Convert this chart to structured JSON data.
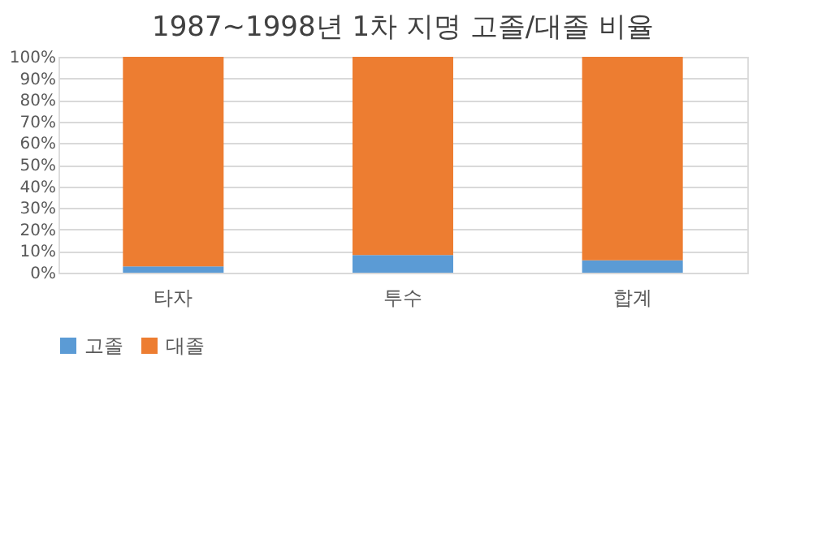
{
  "chart_data": {
    "type": "bar",
    "title": "1987~1998년 1차 지명 고졸/대졸 비율",
    "stacked": true,
    "categories": [
      "타자",
      "투수",
      "합계"
    ],
    "series": [
      {
        "name": "고졸",
        "color": "#5b9bd5",
        "values": [
          2.9,
          8.2,
          5.7
        ]
      },
      {
        "name": "대졸",
        "color": "#ed7d31",
        "values": [
          97.1,
          91.8,
          94.3
        ]
      }
    ],
    "ylim": [
      0,
      100
    ],
    "yticks": [
      {
        "value": 0,
        "label": "0%"
      },
      {
        "value": 10,
        "label": "10%"
      },
      {
        "value": 20,
        "label": "20%"
      },
      {
        "value": 30,
        "label": "30%"
      },
      {
        "value": 40,
        "label": "40%"
      },
      {
        "value": 50,
        "label": "50%"
      },
      {
        "value": 60,
        "label": "60%"
      },
      {
        "value": 70,
        "label": "70%"
      },
      {
        "value": 80,
        "label": "80%"
      },
      {
        "value": 90,
        "label": "90%"
      },
      {
        "value": 100,
        "label": "100%"
      }
    ],
    "grid": "y",
    "legend": "bottom"
  }
}
